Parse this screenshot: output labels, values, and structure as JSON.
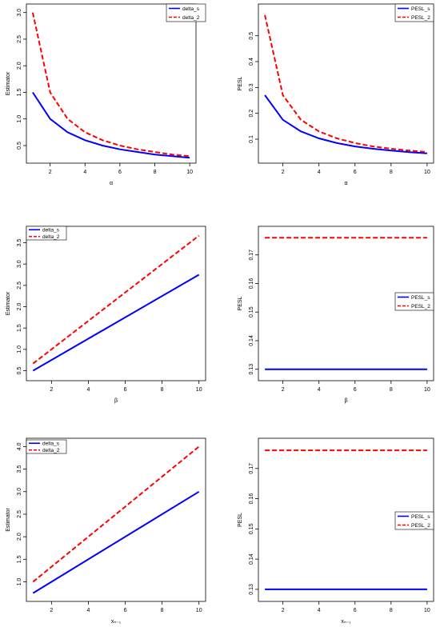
{
  "chart_data": [
    {
      "type": "line",
      "xlabel": "α",
      "ylabel": "Estimator",
      "xlim": [
        1,
        10
      ],
      "ylim": [
        0.28,
        3.05
      ],
      "xticks": [
        2,
        4,
        6,
        8,
        10
      ],
      "yticks": [
        0.5,
        1.0,
        1.5,
        2.0,
        2.5,
        3.0
      ],
      "ytick_labels": [
        "0.5",
        "1.0",
        "1.5",
        "2.0",
        "2.5",
        "3.0"
      ],
      "legend_position": "top-right",
      "x": [
        1,
        2,
        3,
        4,
        5,
        6,
        7,
        8,
        9,
        10
      ],
      "series": [
        {
          "name": "delta_s",
          "color": "#0000ff",
          "dash": "solid",
          "values": [
            1.5,
            1.0,
            0.75,
            0.6,
            0.5,
            0.43,
            0.38,
            0.33,
            0.3,
            0.27
          ]
        },
        {
          "name": "delta_2",
          "color": "#ff0000",
          "dash": "dashed",
          "values": [
            3.0,
            1.5,
            1.0,
            0.75,
            0.6,
            0.5,
            0.43,
            0.38,
            0.33,
            0.3
          ]
        }
      ]
    },
    {
      "type": "line",
      "xlabel": "α",
      "ylabel": "PESL",
      "xlim": [
        1,
        10
      ],
      "ylim": [
        0.03,
        0.6
      ],
      "xticks": [
        2,
        4,
        6,
        8,
        10
      ],
      "yticks": [
        0.1,
        0.2,
        0.3,
        0.4,
        0.5
      ],
      "ytick_labels": [
        "0.1",
        "0.2",
        "0.3",
        "0.4",
        "0.5"
      ],
      "legend_position": "top-right",
      "x": [
        1,
        2,
        3,
        4,
        5,
        6,
        7,
        8,
        9,
        10
      ],
      "series": [
        {
          "name": "PESL_s",
          "color": "#0000ff",
          "dash": "solid",
          "values": [
            0.27,
            0.175,
            0.13,
            0.103,
            0.085,
            0.072,
            0.063,
            0.056,
            0.05,
            0.045
          ]
        },
        {
          "name": "PESL_2",
          "color": "#ff0000",
          "dash": "dashed",
          "values": [
            0.58,
            0.27,
            0.175,
            0.13,
            0.103,
            0.085,
            0.072,
            0.063,
            0.056,
            0.05
          ]
        }
      ]
    },
    {
      "type": "line",
      "xlabel": "β",
      "ylabel": "Estimator",
      "xlim": [
        1,
        10
      ],
      "ylim": [
        0.4,
        3.75
      ],
      "xticks": [
        2,
        4,
        6,
        8,
        10
      ],
      "yticks": [
        0.5,
        1.0,
        1.5,
        2.0,
        2.5,
        3.0,
        3.5
      ],
      "ytick_labels": [
        "0.5",
        "1.0",
        "1.5",
        "2.0",
        "2.5",
        "3.0",
        "3.5"
      ],
      "legend_position": "top-left",
      "x": [
        1,
        10
      ],
      "series": [
        {
          "name": "delta_s",
          "color": "#0000ff",
          "dash": "solid",
          "values": [
            0.5,
            2.75
          ]
        },
        {
          "name": "delta_2",
          "color": "#ff0000",
          "dash": "dashed",
          "values": [
            0.667,
            3.667
          ]
        }
      ]
    },
    {
      "type": "line",
      "xlabel": "β",
      "ylabel": "PESL",
      "xlim": [
        1,
        10
      ],
      "ylim": [
        0.128,
        0.178
      ],
      "xticks": [
        2,
        4,
        6,
        8,
        10
      ],
      "yticks": [
        0.13,
        0.14,
        0.15,
        0.16,
        0.17
      ],
      "ytick_labels": [
        "0.13",
        "0.14",
        "0.15",
        "0.16",
        "0.17"
      ],
      "legend_position": "right",
      "x": [
        1,
        10
      ],
      "series": [
        {
          "name": "PESL_s",
          "color": "#0000ff",
          "dash": "solid",
          "values": [
            0.13,
            0.13
          ]
        },
        {
          "name": "PESL_2",
          "color": "#ff0000",
          "dash": "dashed",
          "values": [
            0.176,
            0.176
          ]
        }
      ]
    },
    {
      "type": "line",
      "xlabel": "xₙ₋₁",
      "ylabel": "Estimator",
      "xlim": [
        1,
        10
      ],
      "ylim": [
        0.7,
        4.05
      ],
      "xticks": [
        2,
        4,
        6,
        8,
        10
      ],
      "yticks": [
        1.0,
        1.5,
        2.0,
        2.5,
        3.0,
        3.5,
        4.0
      ],
      "ytick_labels": [
        "1.0",
        "1.5",
        "2.0",
        "2.5",
        "3.0",
        "3.5",
        "4.0"
      ],
      "legend_position": "top-left",
      "x": [
        1,
        10
      ],
      "series": [
        {
          "name": "delta_s",
          "color": "#0000ff",
          "dash": "solid",
          "values": [
            0.75,
            3.0
          ]
        },
        {
          "name": "delta_2",
          "color": "#ff0000",
          "dash": "dashed",
          "values": [
            1.0,
            4.0
          ]
        }
      ]
    },
    {
      "type": "line",
      "xlabel": "xₙ₋₁",
      "ylabel": "PESL",
      "xlim": [
        1,
        10
      ],
      "ylim": [
        0.128,
        0.178
      ],
      "xticks": [
        2,
        4,
        6,
        8,
        10
      ],
      "yticks": [
        0.13,
        0.14,
        0.15,
        0.16,
        0.17
      ],
      "ytick_labels": [
        "0.13",
        "0.14",
        "0.15",
        "0.16",
        "0.17"
      ],
      "legend_position": "right",
      "x": [
        1,
        10
      ],
      "series": [
        {
          "name": "PESL_s",
          "color": "#0000ff",
          "dash": "solid",
          "values": [
            0.13,
            0.13
          ]
        },
        {
          "name": "PESL_2",
          "color": "#ff0000",
          "dash": "dashed",
          "values": [
            0.176,
            0.176
          ]
        }
      ]
    }
  ]
}
